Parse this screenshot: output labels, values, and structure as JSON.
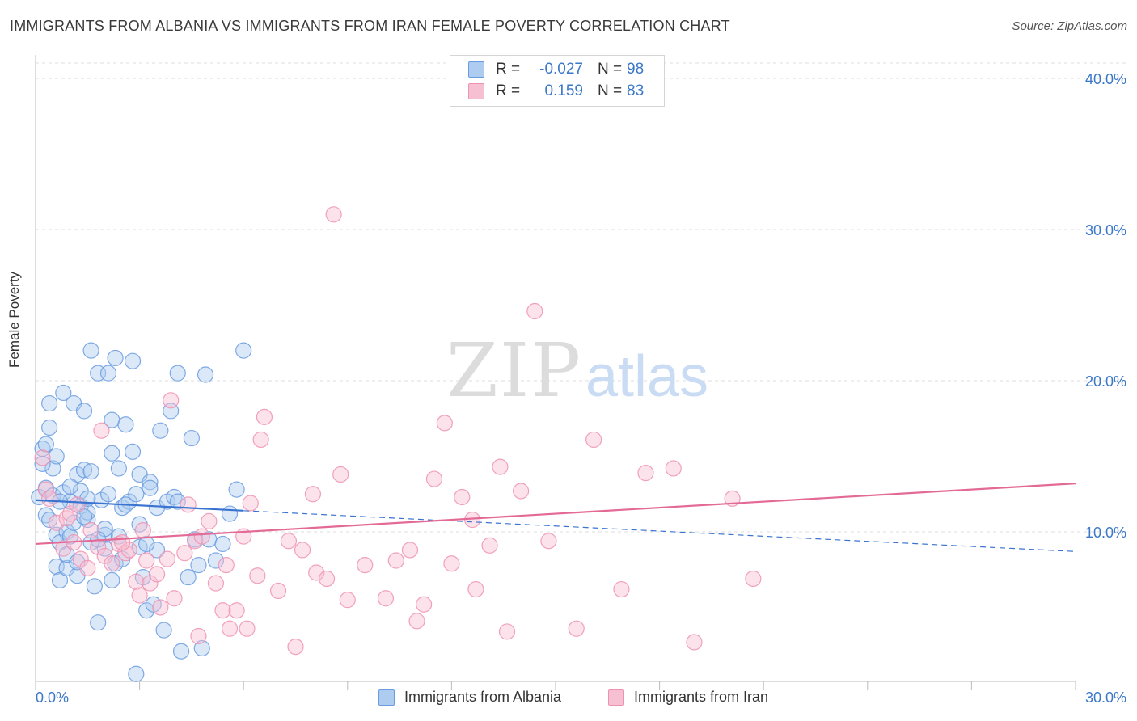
{
  "header": {
    "title": "IMMIGRANTS FROM ALBANIA VS IMMIGRANTS FROM IRAN FEMALE POVERTY CORRELATION CHART",
    "source": "Source: ZipAtlas.com"
  },
  "watermark": {
    "zip": "ZIP",
    "atlas": "atlas"
  },
  "legend_top": {
    "rows": [
      {
        "r_key": "R =",
        "r_val": "-0.027",
        "n_key": "N =",
        "n_val": "98"
      },
      {
        "r_key": "R =",
        "r_val": "0.159",
        "n_key": "N =",
        "n_val": "83"
      }
    ]
  },
  "colors": {
    "albania_fill": "#aecbf0",
    "albania_stroke": "#6a9be0",
    "albania_line": "#3a74d0",
    "iran_fill": "#f7bfd2",
    "iran_stroke": "#ee92b2",
    "iran_line": "#e46a96",
    "tick_label": "#3b78c9",
    "grid": "#dcdcdc"
  },
  "chart_data": {
    "type": "scatter",
    "title": "IMMIGRANTS FROM ALBANIA VS IMMIGRANTS FROM IRAN FEMALE POVERTY CORRELATION CHART",
    "xlabel": "",
    "ylabel": "Female Poverty",
    "xlim": [
      0,
      30
    ],
    "ylim": [
      0,
      40
    ],
    "x_tick_labels": [
      "0.0%",
      "30.0%"
    ],
    "y_ticks": [
      10,
      20,
      30,
      40
    ],
    "y_tick_labels": [
      "10.0%",
      "20.0%",
      "30.0%",
      "40.0%"
    ],
    "grid": true,
    "legend_position": "bottom",
    "series": [
      {
        "name": "Immigrants from Albania",
        "r": -0.027,
        "n": 98,
        "trend": {
          "x_solid": [
            0,
            6
          ],
          "y_solid": [
            12.1,
            11.4
          ],
          "x_dashed": [
            6,
            30
          ],
          "y_dashed": [
            11.4,
            8.7
          ]
        },
        "points": [
          [
            0.1,
            12.3
          ],
          [
            0.2,
            15.5
          ],
          [
            0.3,
            11.1
          ],
          [
            0.3,
            12.9
          ],
          [
            0.4,
            16.9
          ],
          [
            0.4,
            18.5
          ],
          [
            0.5,
            14.2
          ],
          [
            0.5,
            12.4
          ],
          [
            0.6,
            9.8
          ],
          [
            0.6,
            7.7
          ],
          [
            0.7,
            6.8
          ],
          [
            0.7,
            9.3
          ],
          [
            0.8,
            12.6
          ],
          [
            0.8,
            19.2
          ],
          [
            0.9,
            10.0
          ],
          [
            0.9,
            7.6
          ],
          [
            1.0,
            9.7
          ],
          [
            1.0,
            12.0
          ],
          [
            1.1,
            18.5
          ],
          [
            1.1,
            10.6
          ],
          [
            1.2,
            13.8
          ],
          [
            1.2,
            7.1
          ],
          [
            1.3,
            11.7
          ],
          [
            1.3,
            12.7
          ],
          [
            1.4,
            18.0
          ],
          [
            1.4,
            14.1
          ],
          [
            1.5,
            10.8
          ],
          [
            1.5,
            11.3
          ],
          [
            1.6,
            22.0
          ],
          [
            1.6,
            9.3
          ],
          [
            1.7,
            6.4
          ],
          [
            1.8,
            4.0
          ],
          [
            1.8,
            20.5
          ],
          [
            1.9,
            12.1
          ],
          [
            2.0,
            9.8
          ],
          [
            2.0,
            8.9
          ],
          [
            2.1,
            12.5
          ],
          [
            2.1,
            20.5
          ],
          [
            2.2,
            17.4
          ],
          [
            2.2,
            15.2
          ],
          [
            2.3,
            21.5
          ],
          [
            2.3,
            7.9
          ],
          [
            2.4,
            14.2
          ],
          [
            2.5,
            11.6
          ],
          [
            2.5,
            8.2
          ],
          [
            2.6,
            17.1
          ],
          [
            2.7,
            12.0
          ],
          [
            2.8,
            21.3
          ],
          [
            2.8,
            15.3
          ],
          [
            2.9,
            0.6
          ],
          [
            3.0,
            13.8
          ],
          [
            3.0,
            9.0
          ],
          [
            3.1,
            7.0
          ],
          [
            3.2,
            4.8
          ],
          [
            3.3,
            13.3
          ],
          [
            3.3,
            12.9
          ],
          [
            3.4,
            5.2
          ],
          [
            3.5,
            11.6
          ],
          [
            3.6,
            16.7
          ],
          [
            3.7,
            3.5
          ],
          [
            3.8,
            12.0
          ],
          [
            3.9,
            18.0
          ],
          [
            4.0,
            12.3
          ],
          [
            4.1,
            20.5
          ],
          [
            4.2,
            2.1
          ],
          [
            4.4,
            7.0
          ],
          [
            4.5,
            16.2
          ],
          [
            4.6,
            9.5
          ],
          [
            4.7,
            7.8
          ],
          [
            4.8,
            2.3
          ],
          [
            4.9,
            20.4
          ],
          [
            5.0,
            9.5
          ],
          [
            5.2,
            8.1
          ],
          [
            5.4,
            9.2
          ],
          [
            5.6,
            11.2
          ],
          [
            5.8,
            12.8
          ],
          [
            6.0,
            22.0
          ],
          [
            1.0,
            13.0
          ],
          [
            0.6,
            15.0
          ],
          [
            1.5,
            12.2
          ],
          [
            2.0,
            10.2
          ],
          [
            2.6,
            11.8
          ],
          [
            0.9,
            8.5
          ],
          [
            1.8,
            9.5
          ],
          [
            3.0,
            10.5
          ],
          [
            0.2,
            14.5
          ],
          [
            1.2,
            8.0
          ],
          [
            2.4,
            9.7
          ],
          [
            0.4,
            10.8
          ],
          [
            1.6,
            14.0
          ],
          [
            2.9,
            12.5
          ],
          [
            3.5,
            8.8
          ],
          [
            0.7,
            12.0
          ],
          [
            1.4,
            11.0
          ],
          [
            2.2,
            6.8
          ],
          [
            0.3,
            15.8
          ],
          [
            4.1,
            12.0
          ],
          [
            3.2,
            9.2
          ]
        ]
      },
      {
        "name": "Immigrants from Iran",
        "r": 0.159,
        "n": 83,
        "trend": {
          "x_solid": [
            0,
            30
          ],
          "y_solid": [
            9.2,
            13.2
          ]
        },
        "points": [
          [
            0.2,
            14.9
          ],
          [
            0.3,
            12.8
          ],
          [
            0.4,
            12.2
          ],
          [
            0.6,
            10.6
          ],
          [
            0.8,
            8.9
          ],
          [
            0.9,
            10.9
          ],
          [
            1.0,
            11.2
          ],
          [
            1.1,
            9.3
          ],
          [
            1.2,
            11.8
          ],
          [
            1.3,
            8.2
          ],
          [
            1.5,
            7.6
          ],
          [
            1.6,
            10.1
          ],
          [
            1.8,
            9.0
          ],
          [
            1.9,
            16.7
          ],
          [
            2.0,
            8.4
          ],
          [
            2.2,
            7.9
          ],
          [
            2.4,
            9.2
          ],
          [
            2.6,
            8.6
          ],
          [
            2.7,
            8.8
          ],
          [
            2.9,
            6.7
          ],
          [
            3.0,
            5.8
          ],
          [
            3.1,
            10.1
          ],
          [
            3.3,
            6.6
          ],
          [
            3.5,
            7.2
          ],
          [
            3.6,
            5.0
          ],
          [
            3.8,
            8.2
          ],
          [
            3.9,
            18.7
          ],
          [
            4.0,
            5.6
          ],
          [
            4.3,
            8.6
          ],
          [
            4.4,
            11.8
          ],
          [
            4.6,
            9.4
          ],
          [
            4.8,
            9.7
          ],
          [
            5.0,
            10.7
          ],
          [
            5.2,
            6.6
          ],
          [
            5.4,
            4.8
          ],
          [
            5.5,
            7.8
          ],
          [
            5.6,
            3.6
          ],
          [
            5.8,
            4.8
          ],
          [
            6.0,
            9.7
          ],
          [
            6.2,
            11.9
          ],
          [
            6.4,
            7.1
          ],
          [
            6.5,
            16.1
          ],
          [
            6.6,
            17.6
          ],
          [
            7.0,
            6.1
          ],
          [
            7.3,
            9.4
          ],
          [
            7.5,
            2.4
          ],
          [
            7.7,
            8.8
          ],
          [
            8.0,
            12.5
          ],
          [
            8.1,
            7.3
          ],
          [
            8.4,
            6.9
          ],
          [
            8.6,
            31.0
          ],
          [
            8.8,
            13.8
          ],
          [
            9.0,
            5.5
          ],
          [
            9.5,
            7.8
          ],
          [
            10.1,
            5.6
          ],
          [
            10.4,
            8.1
          ],
          [
            10.8,
            8.8
          ],
          [
            11.0,
            4.1
          ],
          [
            11.2,
            5.2
          ],
          [
            11.5,
            13.5
          ],
          [
            11.8,
            17.2
          ],
          [
            12.0,
            7.9
          ],
          [
            12.3,
            12.3
          ],
          [
            12.6,
            10.8
          ],
          [
            12.7,
            6.2
          ],
          [
            13.1,
            9.1
          ],
          [
            13.4,
            14.3
          ],
          [
            13.6,
            3.4
          ],
          [
            14.0,
            12.7
          ],
          [
            14.4,
            24.6
          ],
          [
            14.8,
            9.4
          ],
          [
            15.6,
            3.6
          ],
          [
            16.1,
            16.1
          ],
          [
            16.9,
            6.2
          ],
          [
            17.6,
            13.9
          ],
          [
            18.4,
            14.2
          ],
          [
            19.0,
            2.7
          ],
          [
            20.1,
            12.2
          ],
          [
            20.7,
            6.9
          ],
          [
            2.5,
            9.3
          ],
          [
            3.2,
            8.1
          ],
          [
            4.7,
            3.1
          ],
          [
            6.1,
            3.6
          ]
        ]
      }
    ]
  },
  "legend_bottom": {
    "items": [
      {
        "label": "Immigrants from Albania"
      },
      {
        "label": "Immigrants from Iran"
      }
    ]
  }
}
